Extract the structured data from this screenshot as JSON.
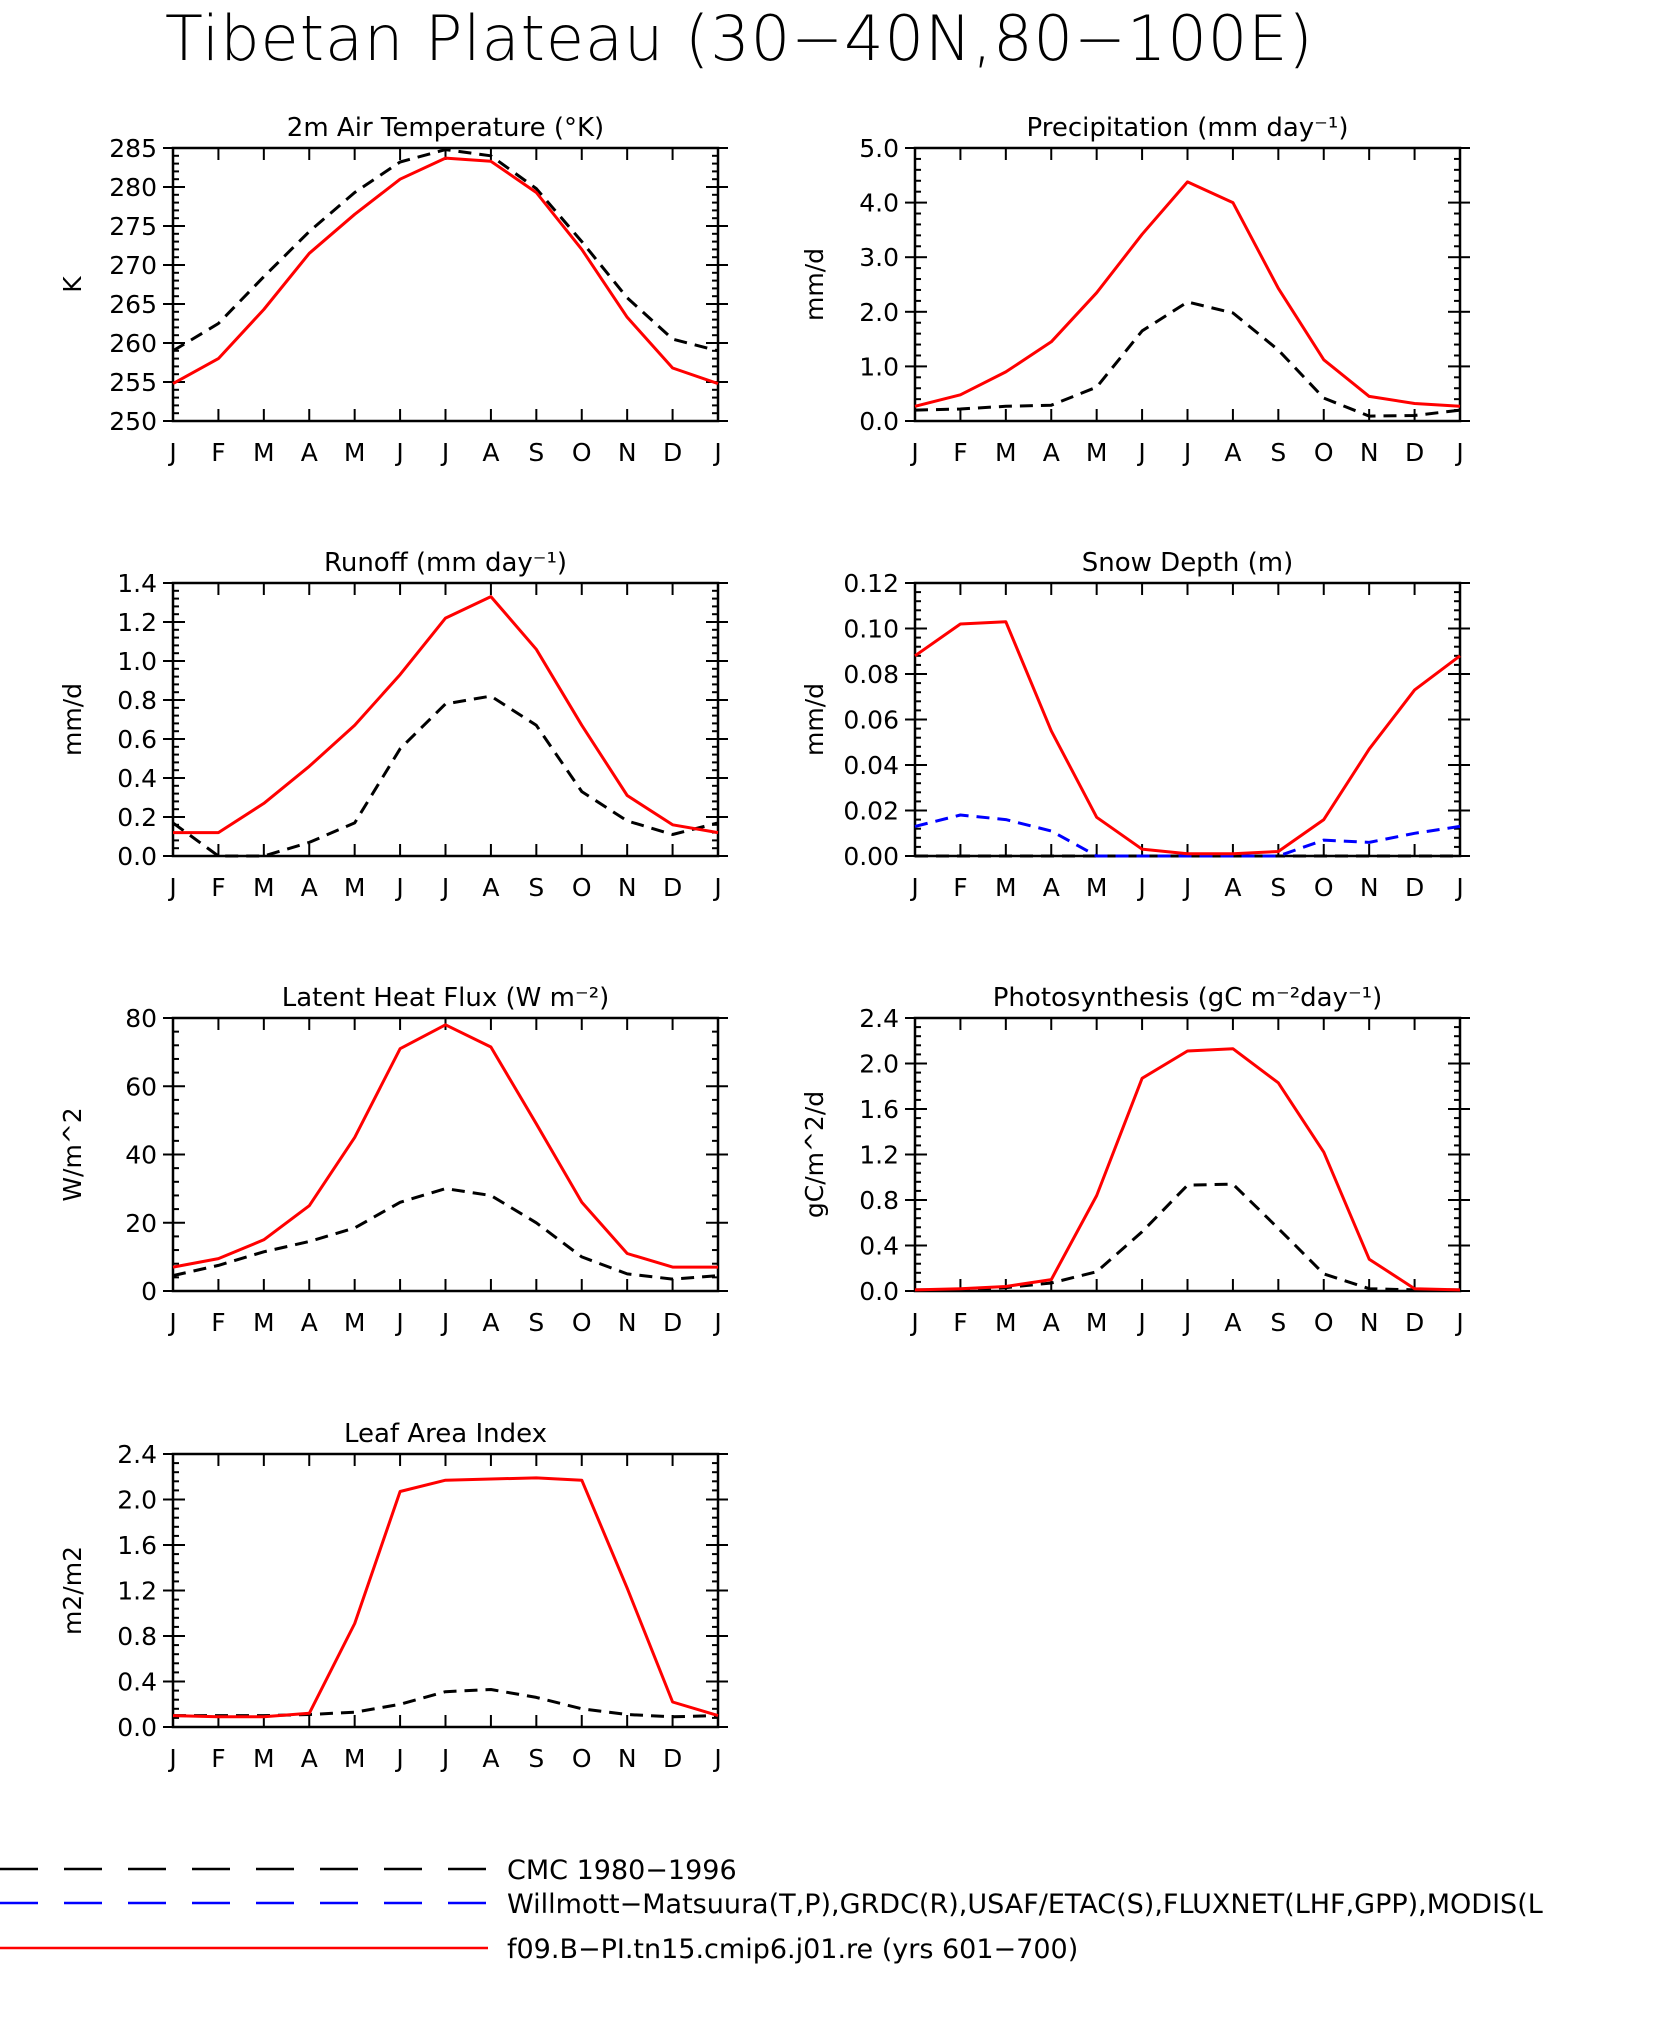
{
  "figure_title": "Tibetan Plateau (30−40N,80−100E)",
  "month_labels": [
    "J",
    "F",
    "M",
    "A",
    "M",
    "J",
    "J",
    "A",
    "S",
    "O",
    "N",
    "D",
    "J"
  ],
  "legend": [
    {
      "label": "CMC 1980−1996",
      "color": "#000000",
      "dash": "long"
    },
    {
      "label": "Willmott−Matsuura(T,P),GRDC(R),USAF/ETAC(S),FLUXNET(LHF,GPP),MODIS(L",
      "color": "#0000ff",
      "dash": "long"
    },
    {
      "label": "f09.B−PI.tn15.cmip6.j01.re (yrs 601−700)",
      "color": "#ff0000",
      "dash": "solid"
    }
  ],
  "chart_data": [
    {
      "type": "line",
      "title": "2m Air Temperature (°K)",
      "ylabel": "K",
      "ylim": [
        250,
        285
      ],
      "yticks": [
        250,
        255,
        260,
        265,
        270,
        275,
        280,
        285
      ],
      "ytick_labels": [
        "250",
        "255",
        "260",
        "265",
        "270",
        "275",
        "280",
        "285"
      ],
      "x": [
        "J",
        "F",
        "M",
        "A",
        "M",
        "J",
        "J",
        "A",
        "S",
        "O",
        "N",
        "D",
        "J"
      ],
      "series": [
        {
          "values": [
            259.0,
            262.5,
            268.5,
            274.3,
            279.3,
            283.2,
            284.8,
            284.0,
            279.8,
            273.0,
            265.8,
            260.5,
            259.0
          ],
          "color": "#000000",
          "dash": "dashed"
        },
        {
          "values": [
            254.8,
            258.0,
            264.3,
            271.5,
            276.5,
            281.0,
            283.7,
            283.3,
            279.3,
            272.0,
            263.3,
            256.8,
            254.8
          ],
          "color": "#ff0000",
          "dash": "solid"
        }
      ]
    },
    {
      "type": "line",
      "title": "Precipitation (mm day⁻¹)",
      "ylabel": "mm/d",
      "ylim": [
        0,
        5
      ],
      "yticks": [
        0,
        1,
        2,
        3,
        4,
        5
      ],
      "ytick_labels": [
        "0.0",
        "1.0",
        "2.0",
        "3.0",
        "4.0",
        "5.0"
      ],
      "x": [
        "J",
        "F",
        "M",
        "A",
        "M",
        "J",
        "J",
        "A",
        "S",
        "O",
        "N",
        "D",
        "J"
      ],
      "series": [
        {
          "values": [
            0.2,
            0.22,
            0.27,
            0.29,
            0.62,
            1.65,
            2.18,
            1.98,
            1.3,
            0.42,
            0.09,
            0.1,
            0.2
          ],
          "color": "#000000",
          "dash": "dashed"
        },
        {
          "values": [
            0.27,
            0.48,
            0.9,
            1.45,
            2.35,
            3.42,
            4.38,
            4.0,
            2.43,
            1.12,
            0.45,
            0.32,
            0.27
          ],
          "color": "#ff0000",
          "dash": "solid"
        }
      ]
    },
    {
      "type": "line",
      "title": "Runoff (mm day⁻¹)",
      "ylabel": "mm/d",
      "ylim": [
        0,
        1.4
      ],
      "yticks": [
        0,
        0.2,
        0.4,
        0.6,
        0.8,
        1.0,
        1.2,
        1.4
      ],
      "ytick_labels": [
        "0.0",
        "0.2",
        "0.4",
        "0.6",
        "0.8",
        "1.0",
        "1.2",
        "1.4"
      ],
      "x": [
        "J",
        "F",
        "M",
        "A",
        "M",
        "J",
        "J",
        "A",
        "S",
        "O",
        "N",
        "D",
        "J"
      ],
      "series": [
        {
          "values": [
            0.17,
            0.0,
            0.0,
            0.07,
            0.17,
            0.55,
            0.78,
            0.82,
            0.67,
            0.33,
            0.18,
            0.11,
            0.17
          ],
          "color": "#000000",
          "dash": "dashed"
        },
        {
          "values": [
            0.12,
            0.12,
            0.27,
            0.46,
            0.67,
            0.93,
            1.22,
            1.33,
            1.06,
            0.67,
            0.31,
            0.16,
            0.12
          ],
          "color": "#ff0000",
          "dash": "solid"
        }
      ]
    },
    {
      "type": "line",
      "title": "Snow Depth (m)",
      "ylabel": "mm/d",
      "ylim": [
        0,
        0.12
      ],
      "yticks": [
        0,
        0.02,
        0.04,
        0.06,
        0.08,
        0.1,
        0.12
      ],
      "ytick_labels": [
        "0.00",
        "0.02",
        "0.04",
        "0.06",
        "0.08",
        "0.10",
        "0.12"
      ],
      "x": [
        "J",
        "F",
        "M",
        "A",
        "M",
        "J",
        "J",
        "A",
        "S",
        "O",
        "N",
        "D",
        "J"
      ],
      "series": [
        {
          "values": [
            0,
            0,
            0,
            0,
            0,
            0,
            0,
            0,
            0,
            0,
            0,
            0,
            0
          ],
          "color": "#000000",
          "dash": "dashed"
        },
        {
          "values": [
            0.013,
            0.018,
            0.016,
            0.011,
            0.0,
            0.0,
            0.0,
            0.0,
            0.0,
            0.007,
            0.006,
            0.01,
            0.013
          ],
          "color": "#0000ff",
          "dash": "dashed"
        },
        {
          "values": [
            0.088,
            0.102,
            0.103,
            0.055,
            0.017,
            0.003,
            0.001,
            0.001,
            0.002,
            0.016,
            0.047,
            0.073,
            0.088
          ],
          "color": "#ff0000",
          "dash": "solid"
        }
      ]
    },
    {
      "type": "line",
      "title": "Latent Heat Flux (W m⁻²)",
      "ylabel": "W/m^2",
      "ylim": [
        0,
        80
      ],
      "yticks": [
        0,
        20,
        40,
        60,
        80
      ],
      "ytick_labels": [
        "0",
        "20",
        "40",
        "60",
        "80"
      ],
      "x": [
        "J",
        "F",
        "M",
        "A",
        "M",
        "J",
        "J",
        "A",
        "S",
        "O",
        "N",
        "D",
        "J"
      ],
      "series": [
        {
          "values": [
            4.5,
            7.5,
            11.5,
            14.5,
            18.5,
            26.0,
            30.0,
            28.0,
            20.0,
            10.0,
            5.0,
            3.5,
            4.5
          ],
          "color": "#000000",
          "dash": "dashed"
        },
        {
          "values": [
            7.0,
            9.5,
            15.0,
            25.0,
            45.0,
            71.0,
            78.0,
            71.5,
            49.0,
            26.0,
            11.0,
            7.0,
            7.0
          ],
          "color": "#ff0000",
          "dash": "solid"
        }
      ]
    },
    {
      "type": "line",
      "title": "Photosynthesis (gC m⁻²day⁻¹)",
      "ylabel": "gC/m^2/d",
      "ylim": [
        0,
        2.4
      ],
      "yticks": [
        0,
        0.4,
        0.8,
        1.2,
        1.6,
        2.0,
        2.4
      ],
      "ytick_labels": [
        "0.0",
        "0.4",
        "0.8",
        "1.2",
        "1.6",
        "2.0",
        "2.4"
      ],
      "x": [
        "J",
        "F",
        "M",
        "A",
        "M",
        "J",
        "J",
        "A",
        "S",
        "O",
        "N",
        "D",
        "J"
      ],
      "series": [
        {
          "values": [
            0.01,
            0.01,
            0.03,
            0.07,
            0.17,
            0.52,
            0.93,
            0.94,
            0.55,
            0.15,
            0.02,
            0.01,
            0.01
          ],
          "color": "#000000",
          "dash": "dashed"
        },
        {
          "values": [
            0.01,
            0.02,
            0.04,
            0.1,
            0.84,
            1.87,
            2.11,
            2.13,
            1.83,
            1.22,
            0.28,
            0.02,
            0.01
          ],
          "color": "#ff0000",
          "dash": "solid"
        }
      ]
    },
    {
      "type": "line",
      "title": "Leaf Area Index",
      "ylabel": "m2/m2",
      "ylim": [
        0,
        2.4
      ],
      "yticks": [
        0,
        0.4,
        0.8,
        1.2,
        1.6,
        2.0,
        2.4
      ],
      "ytick_labels": [
        "0.0",
        "0.4",
        "0.8",
        "1.2",
        "1.6",
        "2.0",
        "2.4"
      ],
      "x": [
        "J",
        "F",
        "M",
        "A",
        "M",
        "J",
        "J",
        "A",
        "S",
        "O",
        "N",
        "D",
        "J"
      ],
      "series": [
        {
          "values": [
            0.1,
            0.1,
            0.1,
            0.11,
            0.13,
            0.2,
            0.31,
            0.33,
            0.26,
            0.16,
            0.11,
            0.09,
            0.1
          ],
          "color": "#000000",
          "dash": "dashed"
        },
        {
          "values": [
            0.1,
            0.09,
            0.09,
            0.12,
            0.91,
            2.07,
            2.17,
            2.18,
            2.19,
            2.17,
            1.22,
            0.22,
            0.1
          ],
          "color": "#ff0000",
          "dash": "solid"
        }
      ]
    }
  ]
}
